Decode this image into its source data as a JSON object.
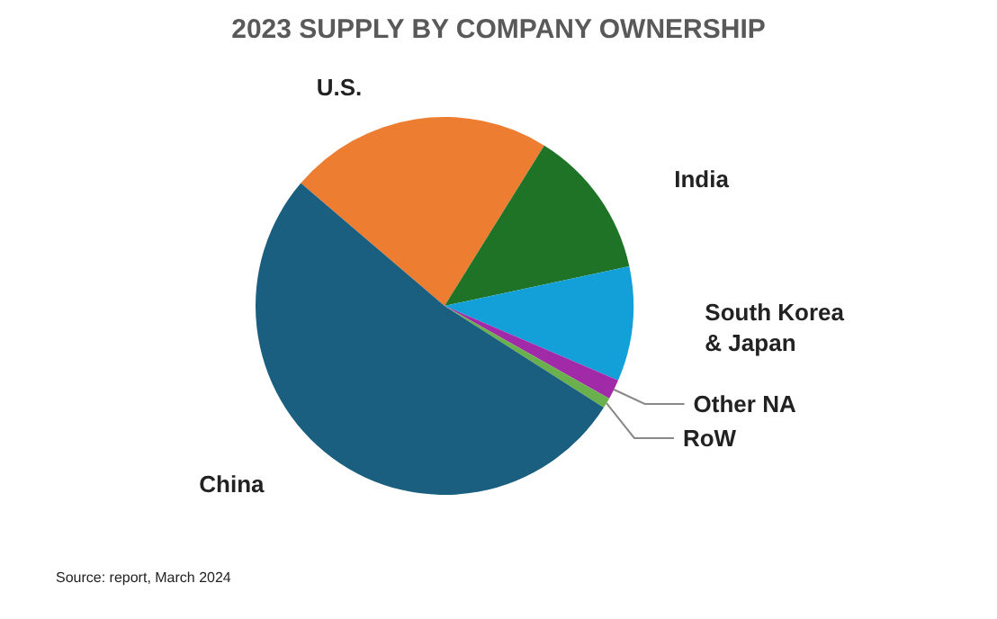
{
  "chart_data": {
    "type": "pie",
    "title": "2023 SUPPLY BY COMPANY OWNERSHIP",
    "categories": [
      "U.S.",
      "India",
      "South Korea & Japan",
      "Other NA",
      "RoW",
      "China"
    ],
    "values": [
      22.6,
      12.8,
      9.8,
      1.7,
      0.9,
      52.2
    ],
    "colors": [
      "#ed7d31",
      "#1e7326",
      "#13a0d9",
      "#a12aa8",
      "#6ab04c",
      "#1a5e80"
    ],
    "legend": false,
    "annotations": [
      "Source: report, March 2024"
    ]
  }
}
